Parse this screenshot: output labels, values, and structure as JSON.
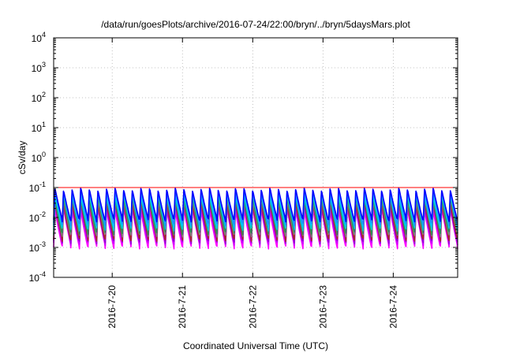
{
  "chart_data": {
    "type": "line",
    "title": "/data/run/goesPlots/archive/2016-07-24/22:00/bryn/../bryn/5daysMars.plot",
    "xlabel": "Coordinated Universal Time (UTC)",
    "ylabel": "cSv/day",
    "yscale": "log",
    "ylim": [
      0.0001,
      10000
    ],
    "xlim": [
      "2016-07-19 04:00",
      "2016-07-24 22:00"
    ],
    "y_ticks": [
      {
        "value": 0.0001,
        "base": "10",
        "exp": "-4"
      },
      {
        "value": 0.001,
        "base": "10",
        "exp": "-3"
      },
      {
        "value": 0.01,
        "base": "10",
        "exp": "-2"
      },
      {
        "value": 0.1,
        "base": "10",
        "exp": "-1"
      },
      {
        "value": 1,
        "base": "10",
        "exp": "0"
      },
      {
        "value": 10,
        "base": "10",
        "exp": "1"
      },
      {
        "value": 100,
        "base": "10",
        "exp": "2"
      },
      {
        "value": 1000,
        "base": "10",
        "exp": "3"
      },
      {
        "value": 10000,
        "base": "10",
        "exp": "4"
      }
    ],
    "x_ticks": [
      {
        "value": "2016-07-20 00:00",
        "label": "2016-7-20"
      },
      {
        "value": "2016-07-21 00:00",
        "label": "2016-7-21"
      },
      {
        "value": "2016-07-22 00:00",
        "label": "2016-7-22"
      },
      {
        "value": "2016-07-23 00:00",
        "label": "2016-7-23"
      },
      {
        "value": "2016-07-24 00:00",
        "label": "2016-7-24"
      }
    ],
    "grid": true,
    "reference_line": {
      "y": 0.1,
      "color": "#ff0000"
    },
    "oscillation": {
      "cycles": 47,
      "peak_value": 0.1,
      "trough_value": 0.001
    },
    "series": [
      {
        "color": "#ff00ff",
        "peak": 0.02,
        "trough": 0.001
      },
      {
        "color": "#cc00ff",
        "peak": 0.025,
        "trough": 0.0013
      },
      {
        "color": "#9400d3",
        "peak": 0.03,
        "trough": 0.0015
      },
      {
        "color": "#a52a2a",
        "peak": 0.035,
        "trough": 0.0018
      },
      {
        "color": "#808080",
        "peak": 0.045,
        "trough": 0.0025
      },
      {
        "color": "#2e8b57",
        "peak": 0.05,
        "trough": 0.003
      },
      {
        "color": "#00ced1",
        "peak": 0.06,
        "trough": 0.004
      },
      {
        "color": "#00bfff",
        "peak": 0.07,
        "trough": 0.005
      },
      {
        "color": "#1e90ff",
        "peak": 0.08,
        "trough": 0.006
      },
      {
        "color": "#0000ff",
        "peak": 0.095,
        "trough": 0.008
      }
    ]
  }
}
